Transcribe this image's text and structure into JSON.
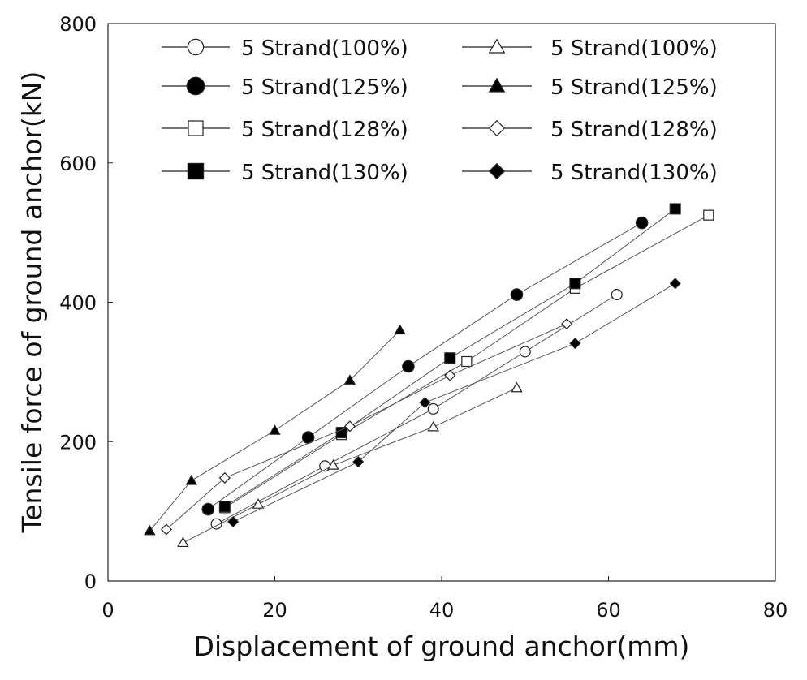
{
  "chart_data": {
    "type": "scatter",
    "title": "",
    "xlabel": "Displacement of ground anchor(mm)",
    "ylabel": "Tensile force of ground anchor(kN)",
    "xlim": [
      0,
      80
    ],
    "ylim": [
      0,
      800
    ],
    "xticks": [
      0,
      20,
      40,
      60,
      80
    ],
    "yticks": [
      0,
      200,
      400,
      600,
      800
    ],
    "grid": false,
    "legend_position": "top",
    "series": [
      {
        "name": "5 Strand(100%)",
        "marker": "open-circle",
        "x": [
          13,
          26,
          39,
          50,
          61
        ],
        "y": [
          82,
          165,
          247,
          329,
          411
        ]
      },
      {
        "name": "5 Strand(125%)",
        "marker": "filled-circle",
        "x": [
          12,
          24,
          36,
          49,
          64
        ],
        "y": [
          103,
          206,
          308,
          411,
          514
        ]
      },
      {
        "name": "5 Strand(128%)",
        "marker": "open-square",
        "x": [
          14,
          28,
          43,
          56,
          72
        ],
        "y": [
          105,
          210,
          315,
          420,
          525
        ]
      },
      {
        "name": "5 Strand(130%)",
        "marker": "filled-square",
        "x": [
          14,
          28,
          41,
          56,
          68
        ],
        "y": [
          107,
          213,
          320,
          427,
          534
        ]
      },
      {
        "name": "5 Strand(100%)",
        "marker": "open-triangle",
        "x": [
          9,
          18,
          27,
          39,
          49
        ],
        "y": [
          55,
          110,
          166,
          221,
          277
        ]
      },
      {
        "name": "5 Strand(125%)",
        "marker": "filled-triangle",
        "x": [
          5,
          10,
          20,
          29,
          35
        ],
        "y": [
          72,
          144,
          216,
          288,
          360
        ]
      },
      {
        "name": "5 Strand(128%)",
        "marker": "open-diamond",
        "x": [
          7,
          14,
          29,
          41,
          55
        ],
        "y": [
          74,
          148,
          222,
          295,
          369
        ]
      },
      {
        "name": "5 Strand(130%)",
        "marker": "filled-diamond",
        "x": [
          15,
          30,
          38,
          56,
          68
        ],
        "y": [
          85,
          171,
          256,
          341,
          427
        ]
      }
    ]
  }
}
